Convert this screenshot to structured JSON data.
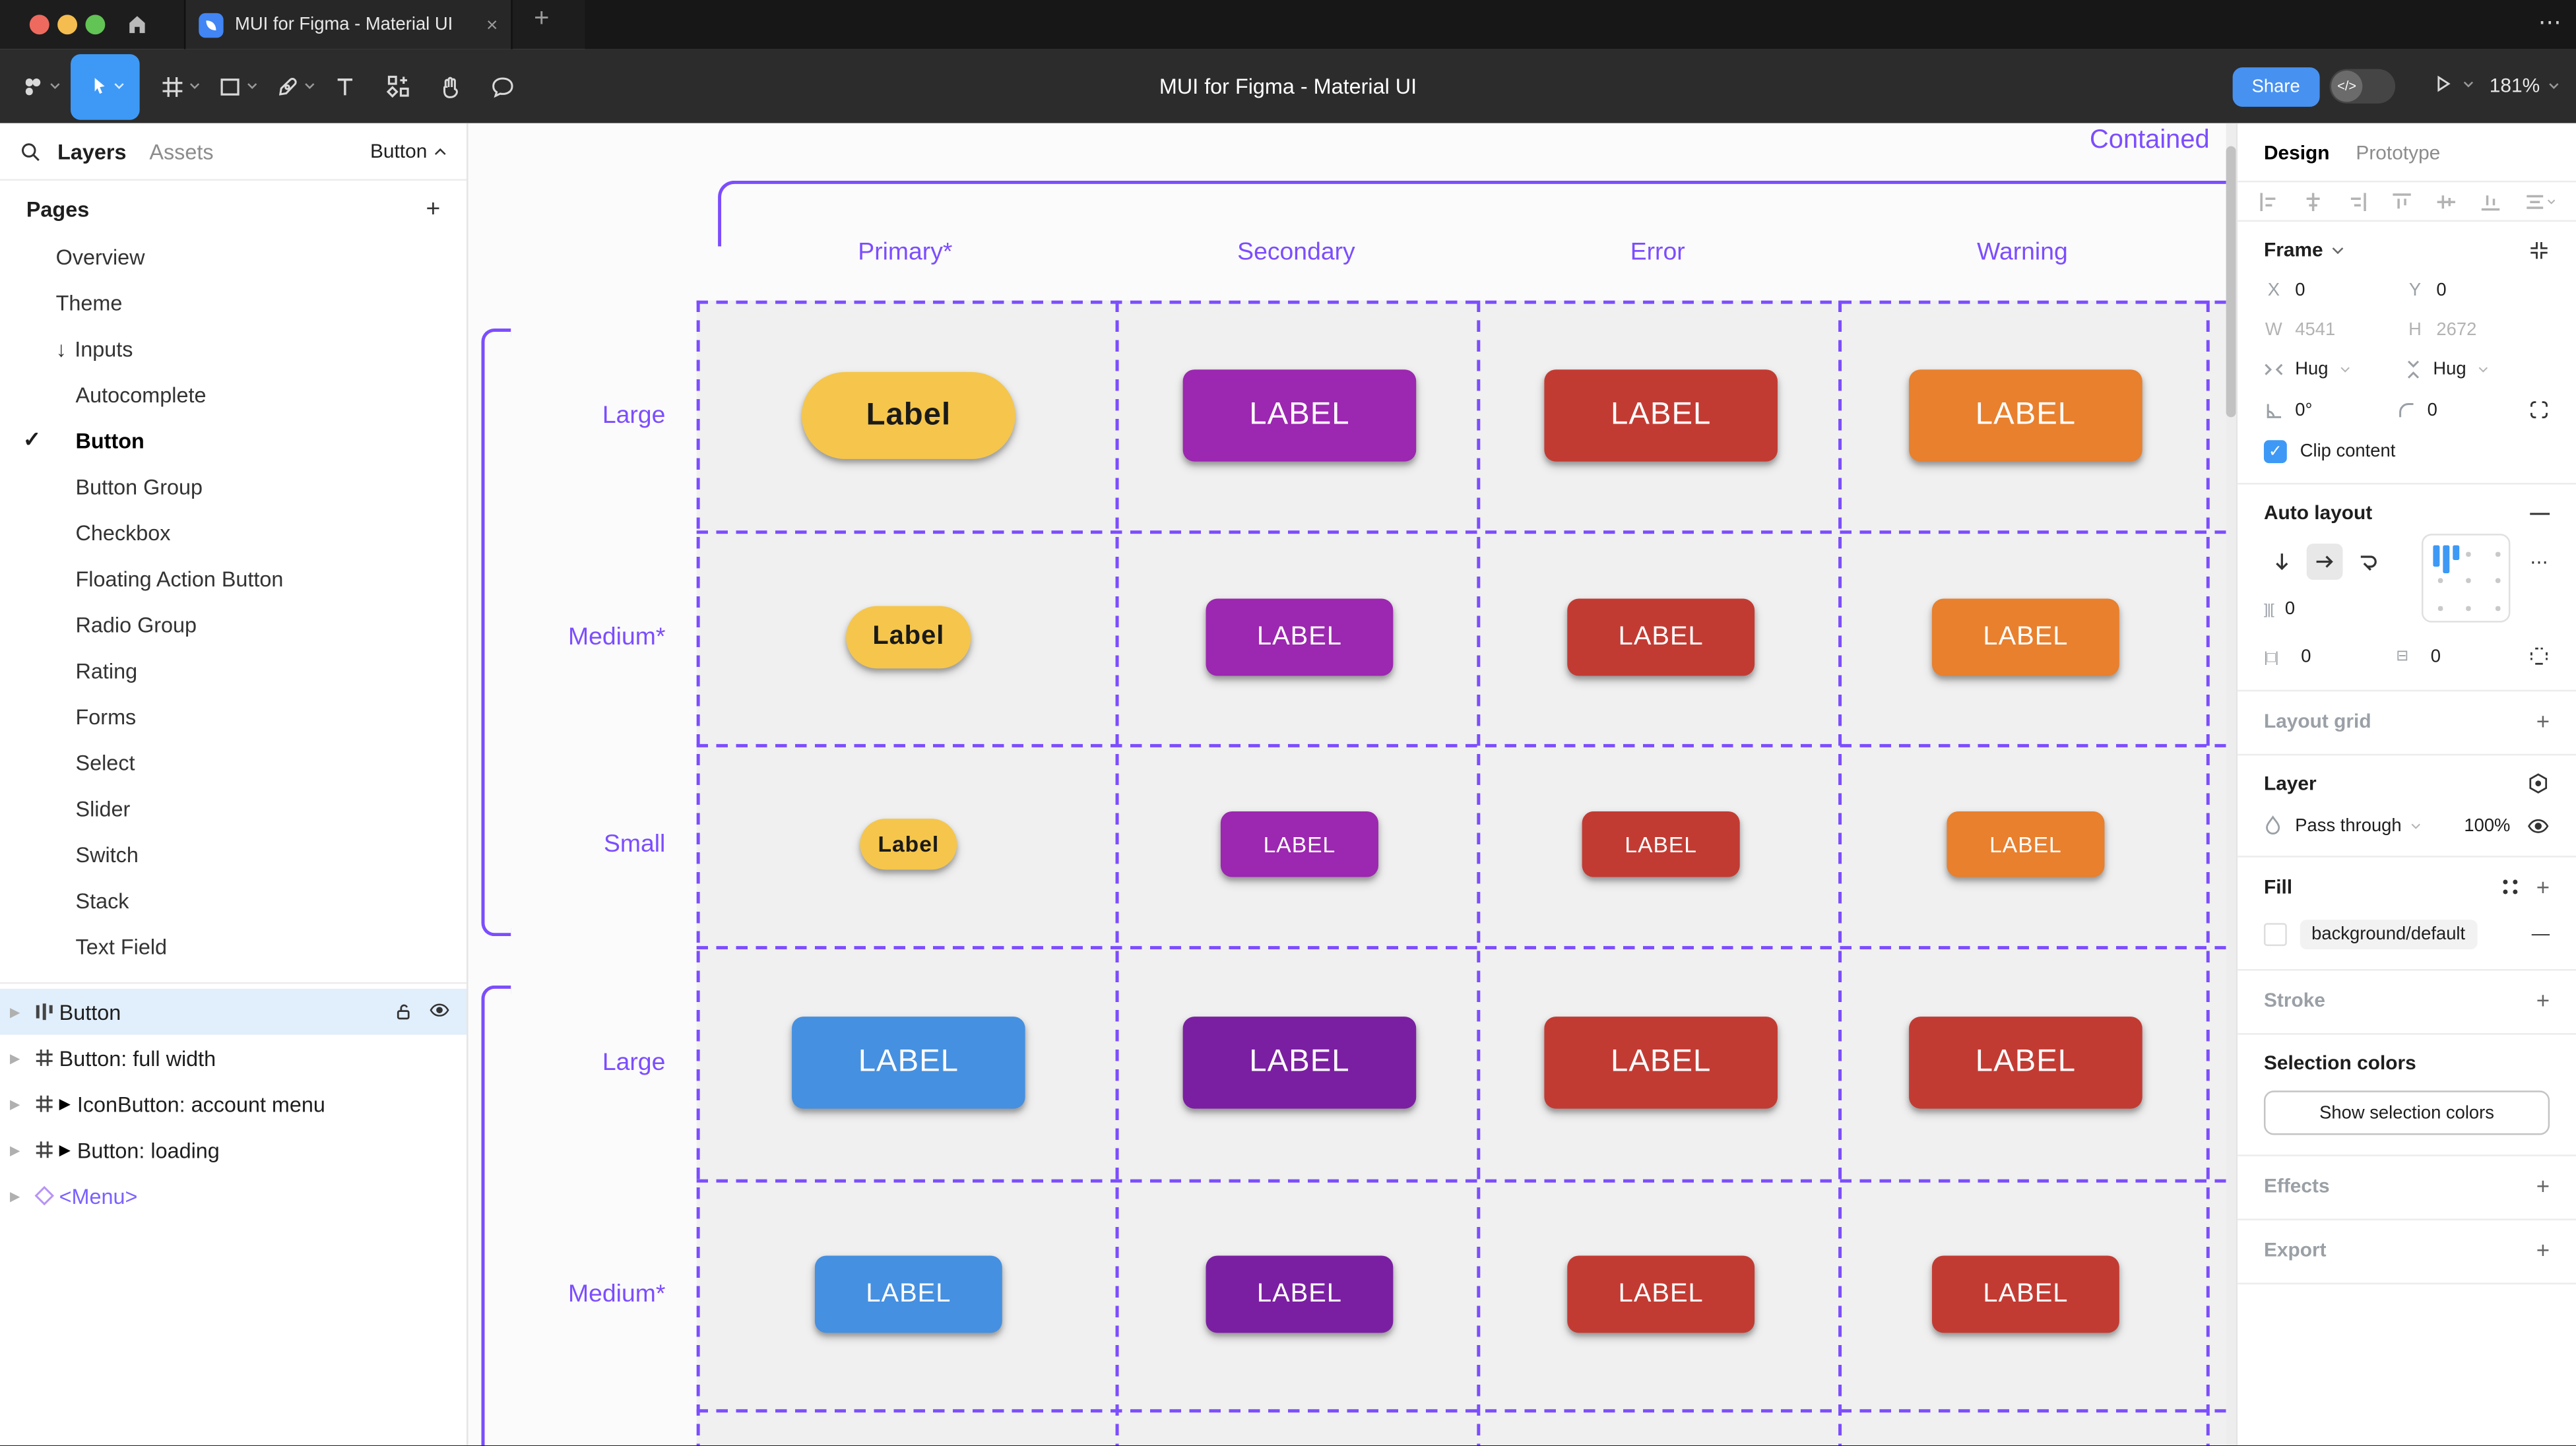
{
  "chrome": {
    "tab_title": "MUI for Figma - Material UI",
    "close_glyph": "×",
    "new_tab_glyph": "+",
    "more_glyph": "⋯"
  },
  "toolbar": {
    "title": "MUI for Figma - Material UI",
    "share_label": "Share",
    "zoom_level": "181%",
    "dev_toggle_glyph": "</>"
  },
  "sidebar": {
    "tabs": {
      "layers": "Layers",
      "assets": "Assets"
    },
    "page_selector": "Button",
    "pages_header": "Pages",
    "pages": [
      {
        "label": "Overview",
        "level": 1
      },
      {
        "label": "Theme",
        "level": 1
      },
      {
        "label": "Inputs",
        "level": 1,
        "prefix": "↓"
      },
      {
        "label": "Autocomplete",
        "level": 2
      },
      {
        "label": "Button",
        "level": 2,
        "selected": true,
        "checked": true
      },
      {
        "label": "Button Group",
        "level": 2
      },
      {
        "label": "Checkbox",
        "level": 2
      },
      {
        "label": "Floating Action Button",
        "level": 2
      },
      {
        "label": "Radio Group",
        "level": 2
      },
      {
        "label": "Rating",
        "level": 2
      },
      {
        "label": "Forms",
        "level": 2
      },
      {
        "label": "Select",
        "level": 2
      },
      {
        "label": "Slider",
        "level": 2
      },
      {
        "label": "Switch",
        "level": 2
      },
      {
        "label": "Stack",
        "level": 2
      },
      {
        "label": "Text Field",
        "level": 2
      }
    ],
    "layers": [
      {
        "label": "Button",
        "icon": "auto-layout",
        "selected": true
      },
      {
        "label": "Button: full width",
        "icon": "frame"
      },
      {
        "label": "IconButton: account menu",
        "icon": "frame",
        "marker": "▶"
      },
      {
        "label": "Button: loading",
        "icon": "frame",
        "marker": "▶"
      },
      {
        "label": "<Menu>",
        "icon": "instance",
        "purple": true
      }
    ]
  },
  "canvas": {
    "frame_title": "Contained",
    "columns": [
      "Primary*",
      "Secondary",
      "Error",
      "Warning"
    ],
    "rows": [
      {
        "label": "Large",
        "size": "lg",
        "cells": [
          {
            "variant": "yellow",
            "text": "Label"
          },
          {
            "variant": "purple",
            "text": "LABEL"
          },
          {
            "variant": "red",
            "text": "LABEL"
          },
          {
            "variant": "orange",
            "text": "LABEL"
          }
        ]
      },
      {
        "label": "Medium*",
        "size": "md",
        "cells": [
          {
            "variant": "yellow",
            "text": "Label"
          },
          {
            "variant": "purple",
            "text": "LABEL"
          },
          {
            "variant": "red",
            "text": "LABEL"
          },
          {
            "variant": "orange",
            "text": "LABEL"
          }
        ]
      },
      {
        "label": "Small",
        "size": "sm",
        "cells": [
          {
            "variant": "yellow",
            "text": "Label"
          },
          {
            "variant": "purple",
            "text": "LABEL"
          },
          {
            "variant": "red",
            "text": "LABEL"
          },
          {
            "variant": "orange",
            "text": "LABEL"
          }
        ]
      },
      {
        "label": "Large",
        "size": "lg",
        "cells": [
          {
            "variant": "blue",
            "text": "LABEL"
          },
          {
            "variant": "deep_purple",
            "text": "LABEL"
          },
          {
            "variant": "red",
            "text": "LABEL"
          },
          {
            "variant": "red",
            "text": "LABEL"
          }
        ]
      },
      {
        "label": "Medium*",
        "size": "md",
        "cells": [
          {
            "variant": "blue",
            "text": "LABEL"
          },
          {
            "variant": "deep_purple",
            "text": "LABEL"
          },
          {
            "variant": "red",
            "text": "LABEL"
          },
          {
            "variant": "red",
            "text": "LABEL"
          }
        ]
      }
    ],
    "colors": {
      "yellow": "#f5c64b",
      "purple": "#9c27b0",
      "deep_purple": "#7b1fa2",
      "red": "#c23b33",
      "orange": "#e8802e",
      "blue": "#4590e0",
      "yellow_text": "#1a1a1a",
      "accent": "#7c4dff"
    }
  },
  "inspector": {
    "tabs": {
      "design": "Design",
      "prototype": "Prototype"
    },
    "frame": {
      "title": "Frame",
      "x_label": "X",
      "x_value": "0",
      "y_label": "Y",
      "y_value": "0",
      "w_label": "W",
      "w_value": "4541",
      "h_label": "H",
      "h_value": "2672",
      "hug_h": "Hug",
      "hug_v": "Hug",
      "rotation": "0°",
      "corner_radius": "0",
      "clip_label": "Clip content",
      "check_glyph": "✓"
    },
    "auto_layout": {
      "title": "Auto layout",
      "remove_glyph": "—",
      "more_glyph": "⋯",
      "gap_value": "0",
      "pad_h_value": "0",
      "pad_v_value": "0",
      "gap_icon": "]|[",
      "pad_h_icon": "|□|",
      "pad_v_icon": "⊟"
    },
    "layout_grid": {
      "title": "Layout grid",
      "add_glyph": "+"
    },
    "layer": {
      "title": "Layer",
      "blend_mode": "Pass through",
      "opacity": "100%"
    },
    "fill": {
      "title": "Fill",
      "token": "background/default",
      "add_glyph": "+",
      "remove_glyph": "—"
    },
    "stroke": {
      "title": "Stroke",
      "add_glyph": "+"
    },
    "selection_colors": {
      "title": "Selection colors",
      "button_label": "Show selection colors"
    },
    "effects": {
      "title": "Effects",
      "add_glyph": "+"
    },
    "export": {
      "title": "Export",
      "add_glyph": "+"
    }
  }
}
